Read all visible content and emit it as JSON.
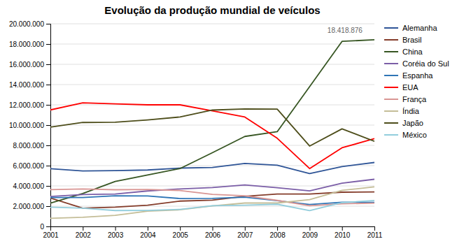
{
  "chart_data": {
    "type": "line",
    "title": "Evolução da produção mundial de veículos",
    "x": [
      2001,
      2002,
      2003,
      2004,
      2005,
      2006,
      2007,
      2008,
      2009,
      2010,
      2011
    ],
    "series": [
      {
        "name": "Alemanha",
        "color": "#2F5597",
        "values": [
          5700000,
          5470000,
          5507000,
          5570000,
          5757000,
          5820000,
          6213000,
          6041000,
          5209000,
          5906000,
          6311000
        ]
      },
      {
        "name": "Brasil",
        "color": "#843C2A",
        "values": [
          2800000,
          1800000,
          1900000,
          2100000,
          2500000,
          2600000,
          2970000,
          3200000,
          3200000,
          3380000,
          3400000
        ]
      },
      {
        "name": "China",
        "color": "#375623",
        "values": [
          2300000,
          3250000,
          4440000,
          5070000,
          5710000,
          7280000,
          8880000,
          9350000,
          13790000,
          18265000,
          18419000
        ]
      },
      {
        "name": "Coréia do Sul",
        "color": "#7B5EA7",
        "values": [
          2950000,
          3150000,
          3200000,
          3500000,
          3700000,
          3840000,
          4090000,
          3820000,
          3510000,
          4272000,
          4657000
        ]
      },
      {
        "name": "Espanha",
        "color": "#2E75B6",
        "values": [
          2850000,
          2855000,
          3030000,
          3010000,
          2750000,
          2770000,
          2890000,
          2542000,
          2170000,
          2390000,
          2374000
        ]
      },
      {
        "name": "EUA",
        "color": "#FF0000",
        "values": [
          11500000,
          12200000,
          12100000,
          12000000,
          12000000,
          11400000,
          10800000,
          8700000,
          5710000,
          7760000,
          8660000
        ]
      },
      {
        "name": "França",
        "color": "#D99694",
        "values": [
          3630000,
          3700000,
          3620000,
          3650000,
          3550000,
          3170000,
          3020000,
          2570000,
          2050000,
          2230000,
          2300000
        ]
      },
      {
        "name": "Índia",
        "color": "#C4BD97",
        "values": [
          800000,
          900000,
          1100000,
          1510000,
          1640000,
          2020000,
          2310000,
          2310000,
          2640000,
          3557000,
          3900000
        ]
      },
      {
        "name": "Japão",
        "color": "#4D4D1A",
        "values": [
          9800000,
          10260000,
          10280000,
          10512000,
          10800000,
          11484000,
          11596000,
          11576000,
          7934000,
          9629000,
          8400000
        ]
      },
      {
        "name": "México",
        "color": "#92CDDC",
        "values": [
          1900000,
          1800000,
          1570000,
          1575000,
          1680000,
          2050000,
          2100000,
          2190000,
          1561000,
          2345000,
          2558000
        ]
      }
    ],
    "xlim": [
      2001,
      2011
    ],
    "xticks": [
      2001,
      2002,
      2003,
      2004,
      2005,
      2006,
      2007,
      2008,
      2009,
      2010,
      2011
    ],
    "ylim": [
      0,
      20000000
    ],
    "yticks": [
      0,
      {
        "value": 2000000,
        "label": "2.000.000"
      },
      {
        "value": 4000000,
        "label": "4.000.000"
      },
      {
        "value": 6000000,
        "label": "6.000.000"
      },
      {
        "value": 8000000,
        "label": "8.000.000"
      },
      {
        "value": 10000000,
        "label": "10.000.000"
      },
      {
        "value": 12000000,
        "label": "12.000.000"
      },
      {
        "value": 14000000,
        "label": "14.000.000"
      },
      {
        "value": 16000000,
        "label": "16.000.000"
      },
      {
        "value": 18000000,
        "label": "18.000.000"
      },
      {
        "value": 20000000,
        "label": "20.000.000"
      }
    ],
    "annotations": [
      {
        "text": "18.418.876",
        "x": 2009.55,
        "y": 19100000
      }
    ],
    "grid": true,
    "legend": "right"
  }
}
